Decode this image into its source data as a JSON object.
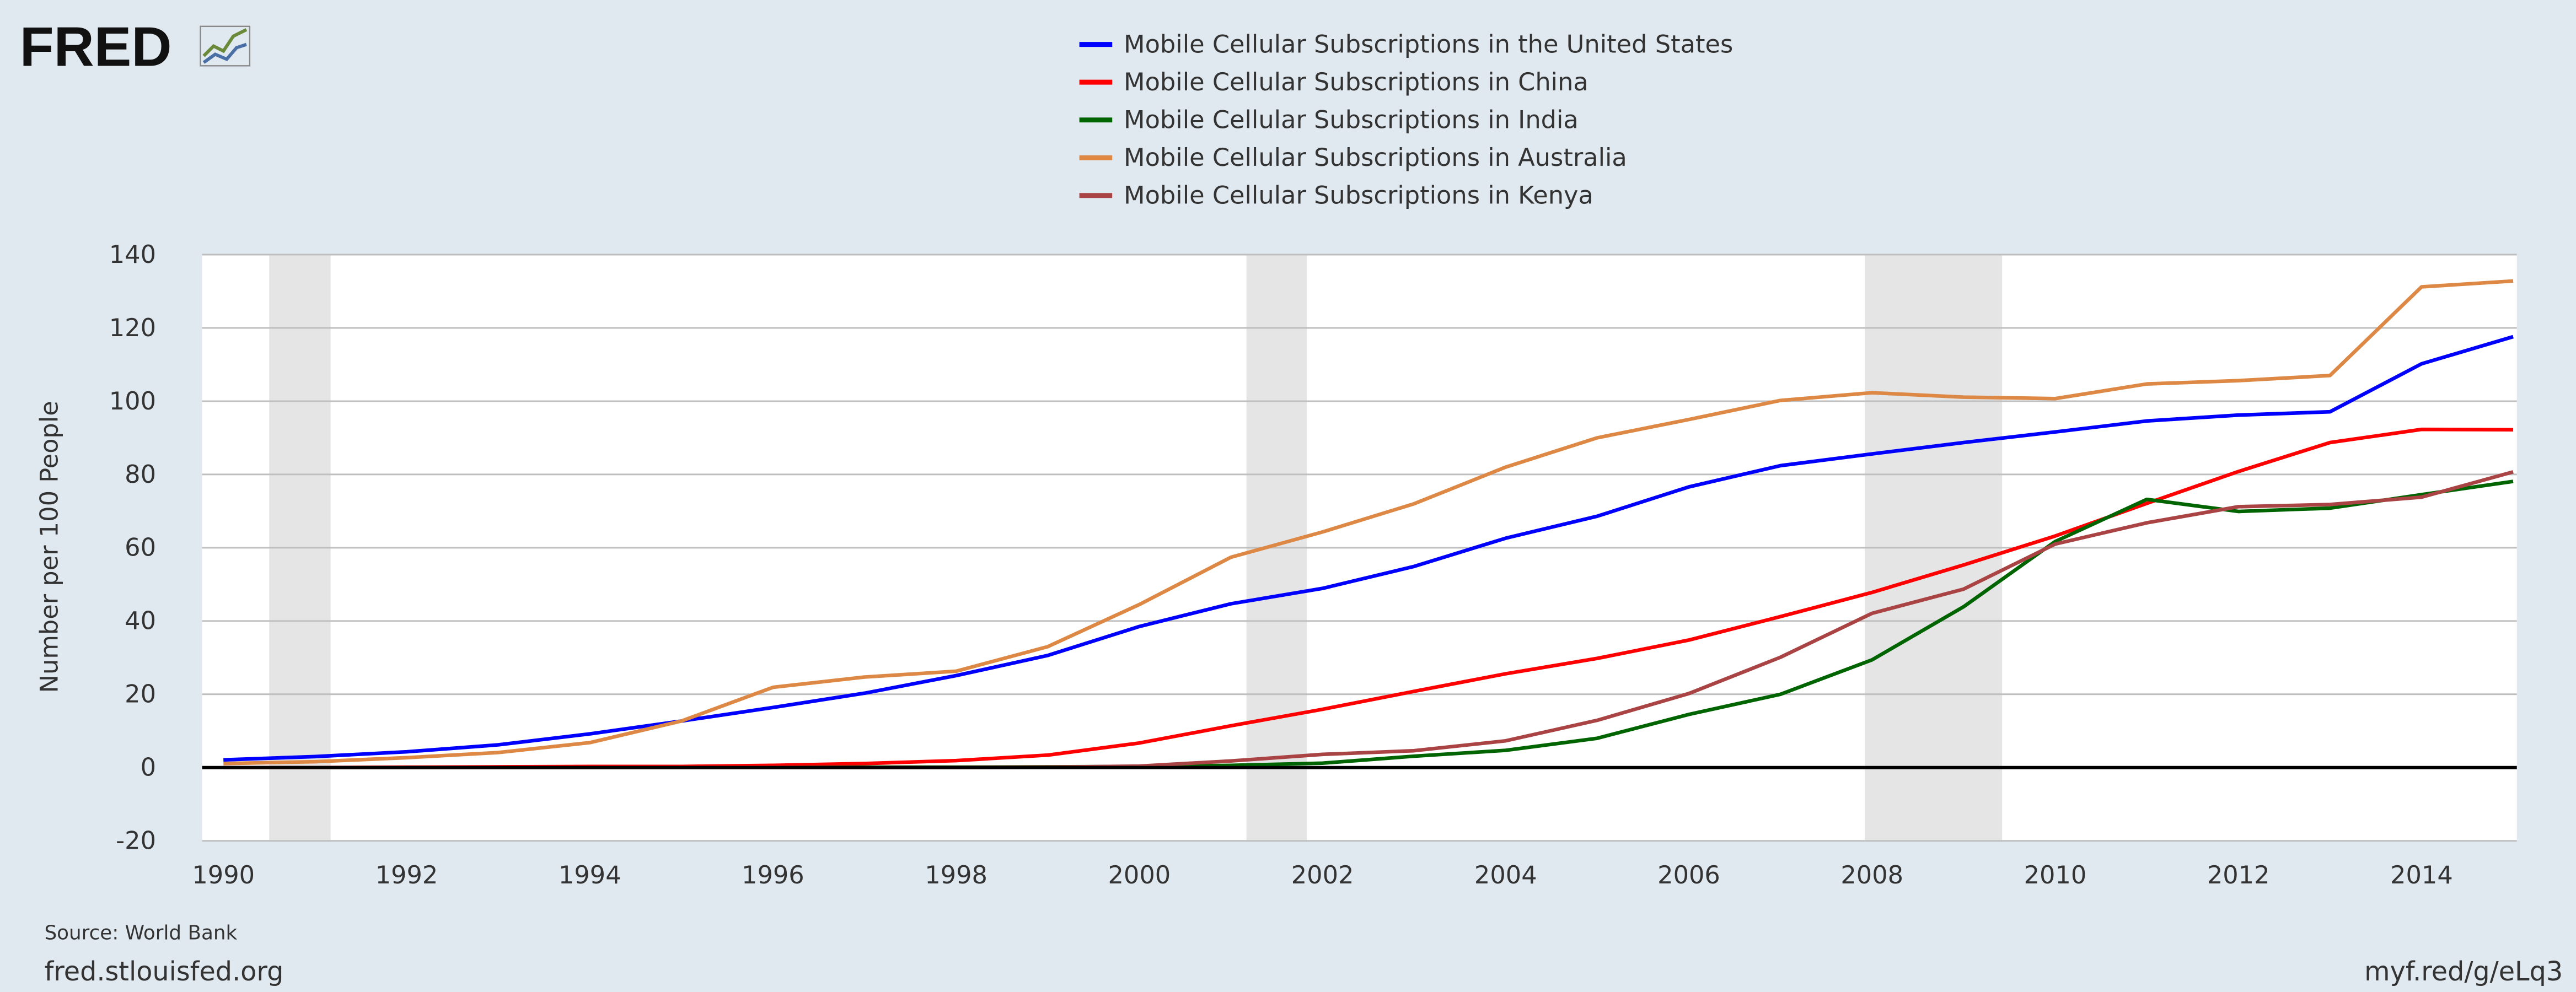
{
  "logo": {
    "text": "FRED"
  },
  "colors": {
    "background": "#e1e9f0",
    "plot_background": "#ffffff",
    "grid": "#bfbfbf",
    "recession": "#e5e5e5",
    "zero_line": "#000000"
  },
  "footer": {
    "source": "Source: World Bank",
    "site": "fred.stlouisfed.org",
    "short_url": "myf.red/g/eLq3"
  },
  "chart_data": {
    "type": "line",
    "ylabel": "Number per 100 People",
    "ylim": [
      -20,
      140
    ],
    "yticks": [
      -20,
      0,
      20,
      40,
      60,
      80,
      100,
      120,
      140
    ],
    "xlim": [
      1990,
      2015
    ],
    "xticks": [
      "1990",
      "1992",
      "1994",
      "1996",
      "1998",
      "2000",
      "2002",
      "2004",
      "2006",
      "2008",
      "2010",
      "2012",
      "2014"
    ],
    "grid": true,
    "legend_position": "top-center",
    "recessions": [
      [
        1990.5,
        1991.17
      ],
      [
        2001.17,
        2001.83
      ],
      [
        2007.92,
        2009.42
      ]
    ],
    "x": [
      1990,
      1991,
      1992,
      1993,
      1994,
      1995,
      1996,
      1997,
      1998,
      1999,
      2000,
      2001,
      2002,
      2003,
      2004,
      2005,
      2006,
      2007,
      2008,
      2009,
      2010,
      2011,
      2012,
      2013,
      2014,
      2015
    ],
    "series": [
      {
        "name": "Mobile Cellular Subscriptions in the United States",
        "color": "#0000ff",
        "values": [
          2.1,
          3.0,
          4.3,
          6.2,
          9.2,
          12.7,
          16.4,
          20.3,
          25.1,
          30.6,
          38.5,
          44.7,
          48.9,
          54.9,
          62.6,
          68.6,
          76.6,
          82.4,
          85.6,
          88.7,
          91.6,
          94.6,
          96.2,
          97.1,
          110.2,
          117.6
        ]
      },
      {
        "name": "Mobile Cellular Subscriptions in China",
        "color": "#ff0000",
        "values": [
          0.0,
          0.0,
          0.1,
          0.2,
          0.3,
          0.3,
          0.6,
          1.1,
          1.9,
          3.4,
          6.7,
          11.4,
          15.9,
          20.8,
          25.6,
          29.8,
          34.8,
          41.2,
          47.8,
          55.3,
          63.2,
          72.1,
          80.8,
          88.7,
          92.3,
          92.2
        ]
      },
      {
        "name": "Mobile Cellular Subscriptions in India",
        "color": "#006400",
        "values": [
          0.0,
          0.0,
          0.0,
          0.0,
          0.0,
          0.0,
          0.0,
          0.1,
          0.1,
          0.2,
          0.3,
          0.6,
          1.2,
          3.1,
          4.7,
          8.0,
          14.5,
          20.0,
          29.4,
          43.9,
          61.7,
          73.2,
          69.9,
          70.8,
          74.5,
          78.1
        ]
      },
      {
        "name": "Mobile Cellular Subscriptions in Australia",
        "color": "#dd8844",
        "values": [
          1.1,
          1.6,
          2.7,
          4.1,
          6.8,
          12.7,
          21.9,
          24.7,
          26.3,
          33.0,
          44.5,
          57.4,
          64.3,
          72.0,
          82.0,
          90.0,
          95.0,
          100.2,
          102.3,
          101.1,
          100.7,
          104.7,
          105.6,
          107.0,
          131.2,
          132.8
        ]
      },
      {
        "name": "Mobile Cellular Subscriptions in Kenya",
        "color": "#aa4444",
        "values": [
          0.0,
          0.0,
          0.0,
          0.0,
          0.0,
          0.0,
          0.0,
          0.0,
          0.0,
          0.1,
          0.4,
          1.8,
          3.6,
          4.6,
          7.3,
          12.9,
          20.2,
          30.1,
          42.1,
          48.7,
          61.0,
          66.8,
          71.2,
          71.8,
          73.8,
          80.7
        ]
      }
    ]
  }
}
